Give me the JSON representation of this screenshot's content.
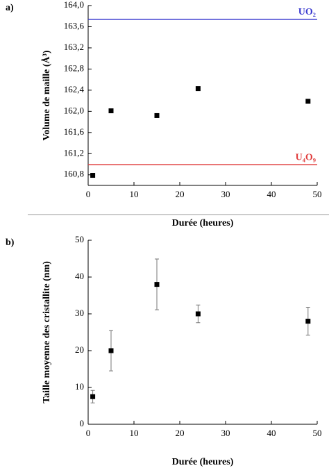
{
  "chart_data": [
    {
      "type": "scatter",
      "panel_label": "a)",
      "xlabel": "Durée (heures)",
      "ylabel": "Volume de maille (Å³)",
      "x": [
        1,
        5,
        15,
        24,
        48
      ],
      "values": [
        160.79,
        162.01,
        161.92,
        162.43,
        162.19
      ],
      "color": "#000000",
      "hlines": [
        {
          "name": "UO₂",
          "value": 163.74,
          "color": "#3a3acf"
        },
        {
          "name": "U₄O₉",
          "value": 160.99,
          "color": "#e03c3c"
        }
      ],
      "xlim": [
        0,
        50
      ],
      "xticks": [
        0,
        10,
        20,
        30,
        40,
        50
      ],
      "ylim": [
        160.6,
        164.0
      ],
      "yticks": [
        {
          "value": 160.8,
          "label": "160,8"
        },
        {
          "value": 161.2,
          "label": "161,2"
        },
        {
          "value": 161.6,
          "label": "161,6"
        },
        {
          "value": 162.0,
          "label": "162,0"
        },
        {
          "value": 162.4,
          "label": "162,4"
        },
        {
          "value": 162.8,
          "label": "162,8"
        },
        {
          "value": 163.2,
          "label": "163,2"
        },
        {
          "value": 163.6,
          "label": "163,6"
        },
        {
          "value": 164.0,
          "label": "164,0"
        }
      ]
    },
    {
      "type": "scatter",
      "panel_label": "b)",
      "xlabel": "Durée (heures)",
      "ylabel": "Taille moyenne des cristallite (nm)",
      "x": [
        1,
        5,
        15,
        24,
        48
      ],
      "values": [
        7.5,
        20,
        38,
        30,
        28
      ],
      "errors": [
        1.7,
        5.5,
        6.9,
        2.4,
        3.8
      ],
      "color": "#000000",
      "xlim": [
        0,
        50
      ],
      "xticks": [
        0,
        10,
        20,
        30,
        40,
        50
      ],
      "ylim": [
        0,
        50
      ],
      "yticks": [
        0,
        10,
        20,
        30,
        40,
        50
      ]
    }
  ]
}
